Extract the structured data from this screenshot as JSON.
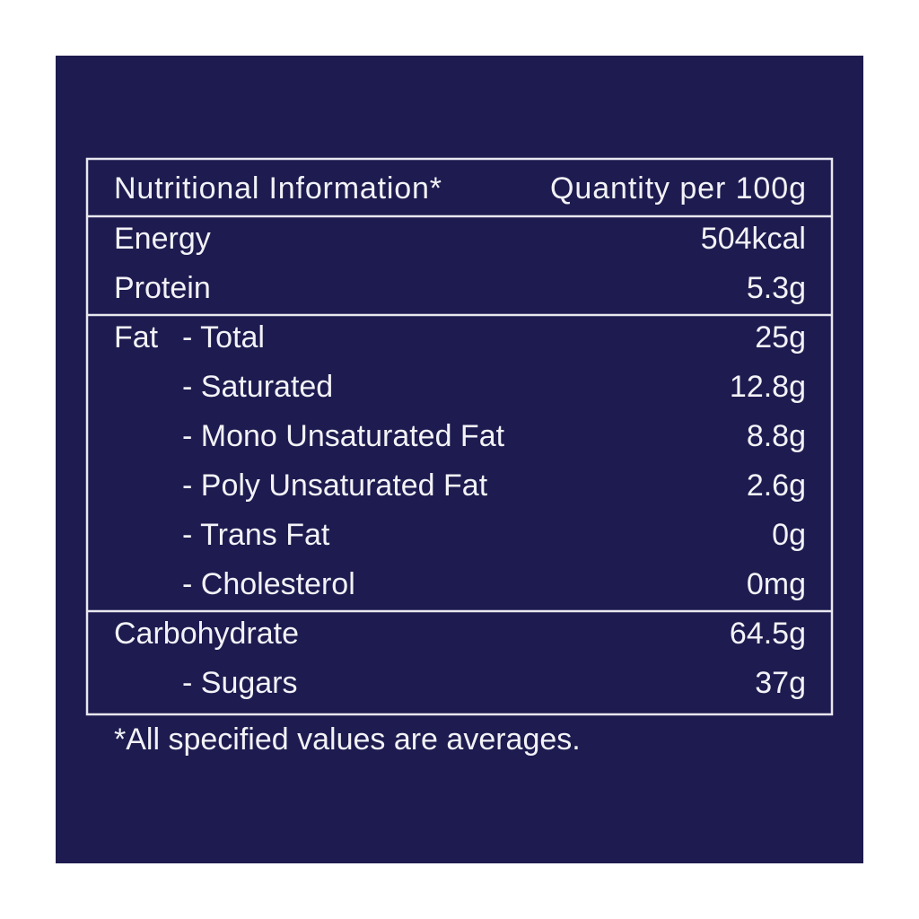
{
  "header": {
    "title": "Nutritional Information*",
    "quantity": "Quantity per 100g"
  },
  "sections": [
    {
      "rows": [
        {
          "label": "Energy",
          "value": "504kcal"
        },
        {
          "label": "Protein",
          "value": "5.3g"
        }
      ]
    },
    {
      "rows": [
        {
          "label": "Fat",
          "item": "- Total",
          "value": "25g"
        },
        {
          "item": "- Saturated",
          "value": "12.8g"
        },
        {
          "item": "- Mono Unsaturated Fat",
          "value": "8.8g"
        },
        {
          "item": "- Poly Unsaturated Fat",
          "value": "2.6g"
        },
        {
          "item": "- Trans Fat",
          "value": "0g"
        },
        {
          "item": "- Cholesterol",
          "value": "0mg"
        }
      ]
    },
    {
      "rows": [
        {
          "label": "Carbohydrate",
          "value": "64.5g"
        },
        {
          "item": "- Sugars",
          "value": "37g"
        }
      ]
    }
  ],
  "footnote": "*All specified values are averages."
}
